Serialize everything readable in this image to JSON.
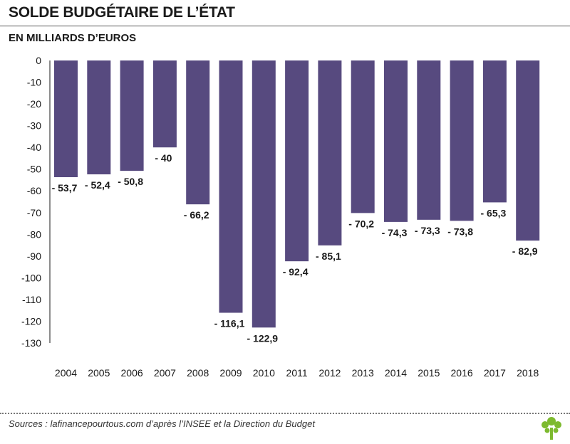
{
  "header": {
    "title": "SOLDE BUDGÉTAIRE DE L’ÉTAT",
    "subtitle": "EN MILLIARDS D’EUROS"
  },
  "footer": {
    "source": "Sources : lafinancepourtous.com d’après l’INSEE et la Direction du Budget",
    "logo_icon": "tree-logo-icon"
  },
  "colors": {
    "bar": "#574a7f",
    "logo": "#7dba2f"
  },
  "chart_data": {
    "type": "bar",
    "title": "SOLDE BUDGÉTAIRE DE L’ÉTAT",
    "subtitle": "EN MILLIARDS D’EUROS",
    "xlabel": "",
    "ylabel": "",
    "categories": [
      "2004",
      "2005",
      "2006",
      "2007",
      "2008",
      "2009",
      "2010",
      "2011",
      "2012",
      "2013",
      "2014",
      "2015",
      "2016",
      "2017",
      "2018"
    ],
    "values": [
      -53.7,
      -52.4,
      -50.8,
      -40,
      -66.2,
      -116.1,
      -122.9,
      -92.4,
      -85.1,
      -70.2,
      -74.3,
      -73.3,
      -73.8,
      -65.3,
      -82.9
    ],
    "data_labels": [
      "- 53,7",
      "- 52,4",
      "- 50,8",
      "- 40",
      "- 66,2",
      "- 116,1",
      "- 122,9",
      "- 92,4",
      "- 85,1",
      "- 70,2",
      "- 74,3",
      "- 73,3",
      "- 73,8",
      "- 65,3",
      "- 82,9"
    ],
    "y_ticks": [
      "0",
      "-10",
      "-20",
      "-30",
      "-40",
      "-50",
      "-60",
      "-70",
      "-80",
      "-90",
      "-100",
      "-110",
      "-120",
      "-130"
    ],
    "ylim": [
      -130,
      0
    ],
    "grid": false,
    "legend": "none"
  }
}
